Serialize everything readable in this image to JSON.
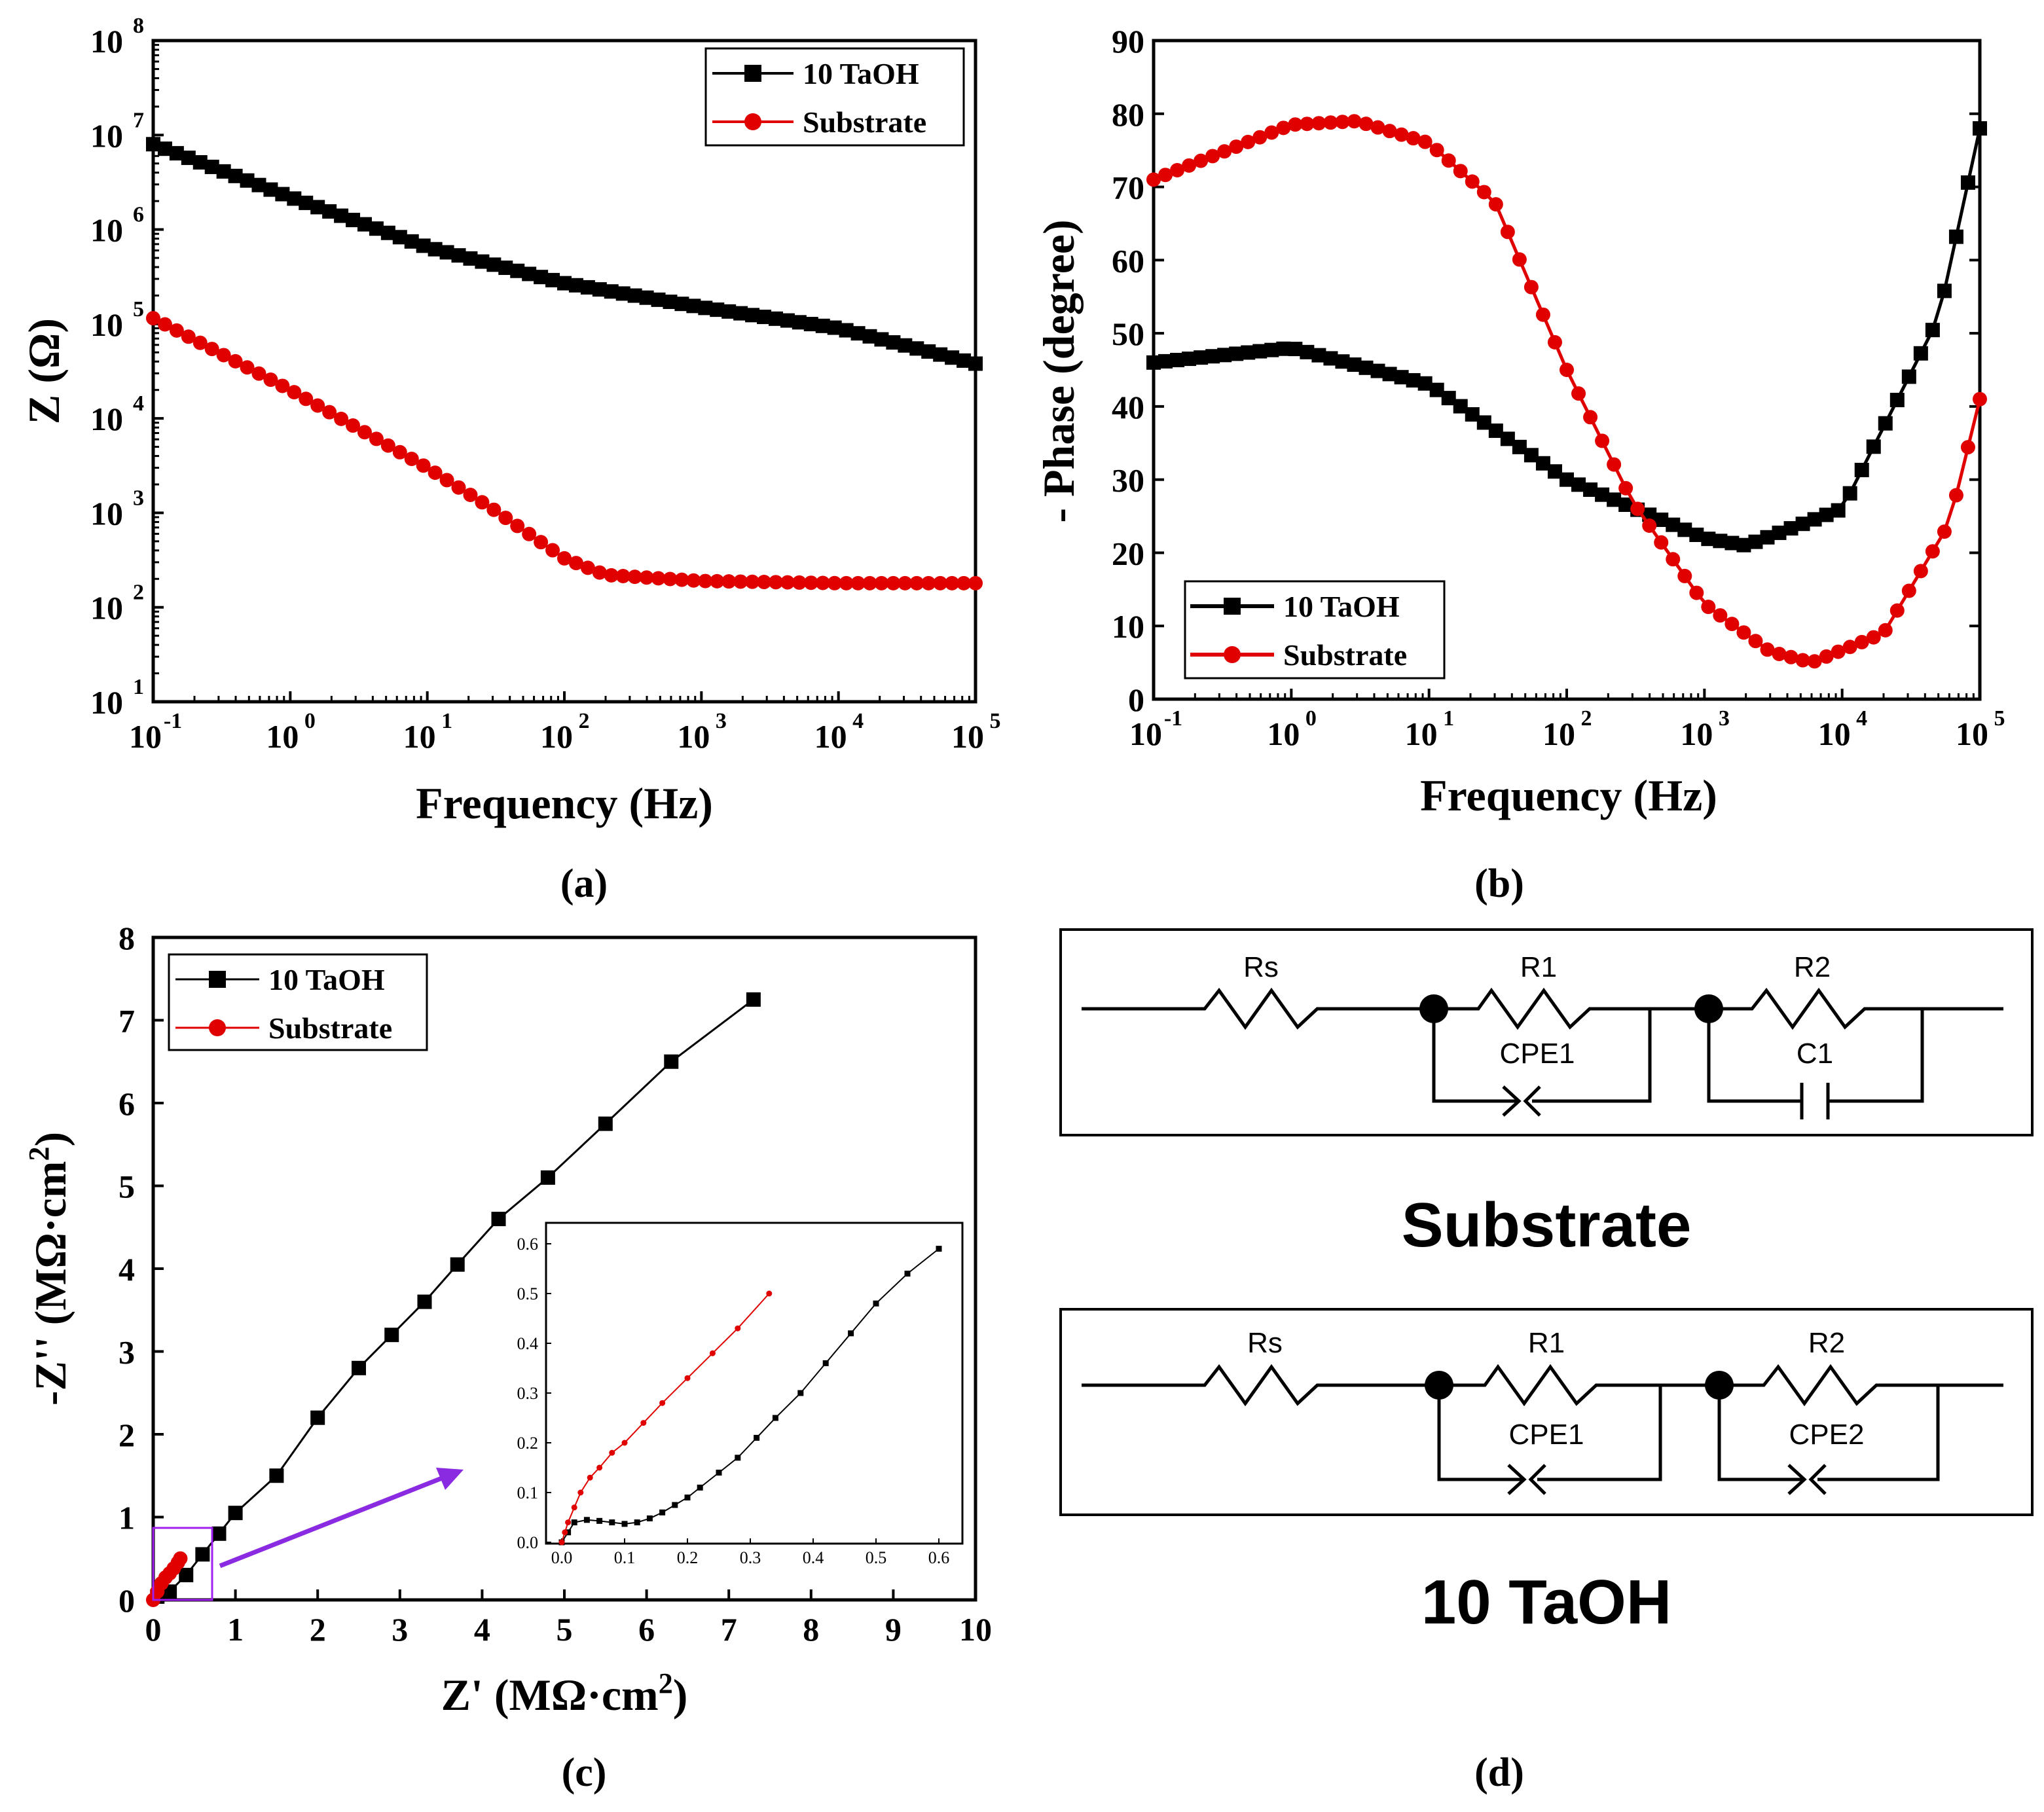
{
  "chart_data": [
    {
      "panel_label": "(a)",
      "type": "line",
      "xlabel": "Frequency (Hz)",
      "ylabel": "Z (Ω)",
      "xscale": "log",
      "yscale": "log",
      "xlim": [
        0.1,
        100000
      ],
      "ylim": [
        10,
        100000000
      ],
      "xticks": [
        "10",
        "10",
        "10",
        "10",
        "10",
        "10",
        "10"
      ],
      "xtick_exp": [
        "-1",
        "0",
        "1",
        "2",
        "3",
        "4",
        "5"
      ],
      "yticks": [
        "10",
        "10",
        "10",
        "10",
        "10",
        "10",
        "10",
        "10"
      ],
      "ytick_exp": [
        "1",
        "2",
        "3",
        "4",
        "5",
        "6",
        "7",
        "8"
      ],
      "legend_position": "top-right",
      "series": [
        {
          "name": "10 TaOH",
          "color": "#000000",
          "marker": "square",
          "x": [
            0.1,
            1,
            10,
            100,
            1000,
            10000,
            100000
          ],
          "y": [
            8000000,
            2200000,
            650000,
            270000,
            150000,
            90000,
            38000
          ]
        },
        {
          "name": "Substrate",
          "color": "#e00000",
          "marker": "circle",
          "x": [
            0.1,
            1,
            10,
            30,
            100,
            200,
            1000,
            10000,
            100000
          ],
          "y": [
            115000,
            20000,
            3000,
            1100,
            330,
            220,
            190,
            180,
            180
          ]
        }
      ]
    },
    {
      "panel_label": "(b)",
      "type": "line",
      "xlabel": "Frequency (Hz)",
      "ylabel": "- Phase (degree)",
      "xscale": "log",
      "xlim": [
        0.1,
        100000
      ],
      "ylim": [
        0,
        90
      ],
      "xticks": [
        "10",
        "10",
        "10",
        "10",
        "10",
        "10",
        "10"
      ],
      "xtick_exp": [
        "-1",
        "0",
        "1",
        "2",
        "3",
        "4",
        "5"
      ],
      "yticks": [
        "0",
        "10",
        "20",
        "30",
        "40",
        "50",
        "60",
        "70",
        "80",
        "90"
      ],
      "legend_position": "bottom-left",
      "series": [
        {
          "name": "10 TaOH",
          "color": "#000000",
          "marker": "square",
          "x": [
            0.1,
            1,
            10,
            100,
            1000,
            2000,
            10000,
            50000,
            100000
          ],
          "y": [
            46,
            48,
            43,
            30,
            22,
            21,
            26,
            52,
            78
          ]
        },
        {
          "name": "Substrate",
          "color": "#e00000",
          "marker": "circle",
          "x": [
            0.1,
            1,
            3,
            10,
            30,
            100,
            300,
            1000,
            3000,
            6000,
            20000,
            60000,
            100000
          ],
          "y": [
            71,
            78.5,
            79,
            76,
            68,
            45,
            27,
            13,
            6.5,
            5,
            9,
            24,
            41
          ]
        }
      ]
    },
    {
      "panel_label": "(c)",
      "type": "scatter",
      "xlabel": "Z' (MΩ·cm",
      "xlabel_sup": "2",
      "xlabel_end": ")",
      "ylabel": "-Z'' (MΩ·cm",
      "ylabel_sup": "2",
      "ylabel_end": ")",
      "xlim": [
        0,
        10
      ],
      "ylim": [
        0,
        8
      ],
      "xticks": [
        "0",
        "1",
        "2",
        "3",
        "4",
        "5",
        "6",
        "7",
        "8",
        "9",
        "10"
      ],
      "yticks": [
        "0",
        "1",
        "2",
        "3",
        "4",
        "5",
        "6",
        "7",
        "8"
      ],
      "legend_position": "top-left",
      "series": [
        {
          "name": "10 TaOH",
          "color": "#000000",
          "marker": "square",
          "x": [
            0.05,
            0.2,
            0.4,
            0.6,
            0.8,
            1.0,
            1.5,
            2.0,
            2.5,
            2.9,
            3.3,
            3.7,
            4.2,
            4.8,
            5.5,
            6.3,
            7.3
          ],
          "y": [
            0.04,
            0.1,
            0.3,
            0.55,
            0.8,
            1.05,
            1.5,
            2.2,
            2.8,
            3.2,
            3.6,
            4.05,
            4.6,
            5.1,
            5.75,
            6.5,
            7.25
          ]
        },
        {
          "name": "Substrate",
          "color": "#e00000",
          "marker": "circle",
          "x": [
            0.0,
            0.05,
            0.1,
            0.15,
            0.2,
            0.25,
            0.3,
            0.33
          ],
          "y": [
            0.0,
            0.1,
            0.2,
            0.27,
            0.32,
            0.38,
            0.45,
            0.5
          ]
        }
      ],
      "inset": {
        "xlim": [
          0,
          0.6
        ],
        "ylim": [
          0,
          0.6
        ],
        "xticks": [
          "0.0",
          "0.1",
          "0.2",
          "0.3",
          "0.4",
          "0.5",
          "0.6"
        ],
        "yticks": [
          "0.0",
          "0.1",
          "0.2",
          "0.3",
          "0.4",
          "0.5",
          "0.6"
        ],
        "series": [
          {
            "name": "10 TaOH",
            "color": "#000000",
            "x": [
              0.0,
              0.01,
              0.02,
              0.04,
              0.06,
              0.08,
              0.1,
              0.12,
              0.14,
              0.16,
              0.18,
              0.2,
              0.22,
              0.25,
              0.28,
              0.31,
              0.34,
              0.38,
              0.42,
              0.46,
              0.5,
              0.55,
              0.6
            ],
            "y": [
              0.0,
              0.02,
              0.04,
              0.045,
              0.043,
              0.04,
              0.037,
              0.04,
              0.048,
              0.06,
              0.075,
              0.09,
              0.11,
              0.14,
              0.17,
              0.21,
              0.25,
              0.3,
              0.36,
              0.42,
              0.48,
              0.54,
              0.59
            ]
          },
          {
            "name": "Substrate",
            "color": "#e00000",
            "x": [
              0.0,
              0.005,
              0.01,
              0.02,
              0.03,
              0.045,
              0.06,
              0.08,
              0.1,
              0.13,
              0.16,
              0.2,
              0.24,
              0.28,
              0.33
            ],
            "y": [
              0.0,
              0.02,
              0.04,
              0.07,
              0.1,
              0.13,
              0.15,
              0.18,
              0.2,
              0.24,
              0.28,
              0.33,
              0.38,
              0.43,
              0.5
            ]
          }
        ]
      }
    }
  ],
  "circuits": {
    "panel_label": "(d)",
    "substrate": {
      "label": "Substrate",
      "rs": "Rs",
      "r1": "R1",
      "r2": "R2",
      "cpe1": "CPE1",
      "c1": "C1"
    },
    "taoh": {
      "label": "10 TaOH",
      "rs": "Rs",
      "r1": "R1",
      "r2": "R2",
      "cpe1": "CPE1",
      "cpe2": "CPE2"
    }
  },
  "colors": {
    "black_series": "#000000",
    "red_series": "#e00000",
    "arrow": "#8a2be2",
    "zoom_box": "#a020f0"
  }
}
